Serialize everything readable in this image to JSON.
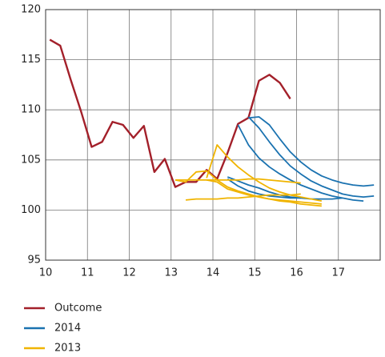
{
  "chart_data": {
    "type": "line",
    "xlim": [
      10,
      18
    ],
    "ylim": [
      95,
      120
    ],
    "xticks": [
      10,
      11,
      12,
      13,
      14,
      15,
      16,
      17
    ],
    "yticks": [
      95,
      100,
      105,
      110,
      115,
      120
    ],
    "grid": true,
    "legend": "bottom",
    "series": [
      {
        "name": "Outcome",
        "color": "#a3202a",
        "lines": [
          {
            "x": [
              10.1,
              10.35,
              10.6,
              10.85,
              11.1,
              11.35,
              11.6,
              11.85,
              12.1,
              12.35,
              12.6,
              12.85,
              13.1,
              13.35,
              13.6,
              13.85,
              14.1,
              14.35,
              14.6,
              14.85,
              15.1,
              15.35,
              15.6,
              15.85
            ],
            "values": [
              117.0,
              116.4,
              113.0,
              109.8,
              106.3,
              106.8,
              108.8,
              108.5,
              107.2,
              108.4,
              103.8,
              105.1,
              102.3,
              102.8,
              102.8,
              104.0,
              103.1,
              105.7,
              108.6,
              109.2,
              112.9,
              113.5,
              112.7,
              111.1
            ]
          }
        ]
      },
      {
        "name": "2014",
        "color": "#1a72b0",
        "lines": [
          {
            "x": [
              14.35,
              14.6,
              14.85,
              15.1,
              15.35,
              15.6,
              15.85,
              16.1,
              16.35,
              16.6,
              16.85,
              17.1
            ],
            "values": [
              103.3,
              102.9,
              102.5,
              102.2,
              101.8,
              101.5,
              101.3,
              101.2,
              101.1,
              101.1,
              101.1,
              101.2
            ]
          },
          {
            "x": [
              14.35,
              14.6,
              14.85,
              15.1,
              15.35,
              15.6,
              15.85,
              16.1
            ],
            "values": [
              103.1,
              102.4,
              101.9,
              101.6,
              101.4,
              101.3,
              101.2,
              101.2
            ]
          },
          {
            "x": [
              14.6,
              14.85,
              15.1,
              15.35,
              15.6,
              15.85,
              16.1,
              16.35,
              16.6,
              16.85,
              17.1,
              17.35,
              17.6
            ],
            "values": [
              108.5,
              106.5,
              105.2,
              104.3,
              103.6,
              103.0,
              102.5,
              102.1,
              101.7,
              101.4,
              101.2,
              101.0,
              100.9
            ]
          },
          {
            "x": [
              14.85,
              15.1,
              15.35,
              15.6,
              15.85,
              16.1,
              16.35,
              16.6,
              16.85,
              17.1,
              17.35,
              17.6,
              17.85
            ],
            "values": [
              109.3,
              108.2,
              106.8,
              105.5,
              104.4,
              103.6,
              102.9,
              102.4,
              102.0,
              101.6,
              101.4,
              101.3,
              101.4
            ]
          },
          {
            "x": [
              14.85,
              15.1,
              15.35,
              15.6,
              15.85,
              16.1,
              16.35,
              16.6,
              16.85,
              17.1,
              17.35,
              17.6,
              17.85
            ],
            "values": [
              109.2,
              109.3,
              108.5,
              107.1,
              105.8,
              104.8,
              104.0,
              103.4,
              103.0,
              102.7,
              102.5,
              102.4,
              102.5
            ]
          }
        ]
      },
      {
        "name": "2013",
        "color": "#f0b400",
        "lines": [
          {
            "x": [
              13.35,
              13.6,
              13.85,
              14.1,
              14.35,
              14.6,
              14.85,
              15.1,
              15.35,
              15.6,
              15.85,
              16.1
            ],
            "values": [
              101.0,
              101.1,
              101.1,
              101.1,
              101.2,
              101.2,
              101.3,
              101.4,
              101.5,
              101.5,
              101.5,
              101.6
            ]
          },
          {
            "x": [
              13.1,
              13.35,
              13.6,
              13.85,
              14.1,
              14.35,
              14.6,
              14.85,
              15.1,
              15.35,
              15.6,
              15.85,
              16.1,
              16.35,
              16.6
            ],
            "values": [
              103.0,
              102.8,
              103.8,
              103.9,
              103.0,
              102.3,
              101.9,
              101.6,
              101.3,
              101.1,
              100.9,
              100.8,
              100.6,
              100.5,
              100.4
            ]
          },
          {
            "x": [
              13.85,
              14.1,
              14.35,
              14.6,
              14.85,
              15.1,
              15.35,
              15.6,
              15.85,
              16.1,
              16.35,
              16.6
            ],
            "values": [
              103.2,
              106.5,
              105.3,
              104.3,
              103.5,
              102.8,
              102.2,
              101.8,
              101.5,
              101.3,
              101.1,
              100.9
            ]
          },
          {
            "x": [
              13.1,
              13.35,
              13.6,
              13.85,
              14.1,
              14.35,
              14.6,
              14.85,
              15.1,
              15.35,
              15.6,
              15.85,
              16.1
            ],
            "values": [
              103.0,
              103.0,
              103.0,
              103.0,
              103.0,
              103.0,
              103.0,
              103.1,
              103.1,
              103.0,
              102.9,
              102.8,
              102.7
            ]
          },
          {
            "x": [
              13.85,
              14.1,
              14.35,
              14.6,
              14.85,
              15.1,
              15.35,
              15.6,
              15.85,
              16.1,
              16.35,
              16.6
            ],
            "values": [
              103.0,
              102.8,
              102.1,
              101.8,
              101.5,
              101.3,
              101.1,
              101.0,
              100.9,
              100.8,
              100.7,
              100.6
            ]
          }
        ]
      }
    ]
  }
}
